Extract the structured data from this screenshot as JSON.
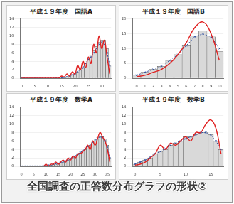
{
  "caption": "全国調査の正答数分布グラフの形状②",
  "chart_data": [
    {
      "type": "bar",
      "title": "平成１９年度　国語A",
      "categories": [
        "0",
        null,
        null,
        null,
        null,
        "5",
        null,
        null,
        null,
        null,
        "10",
        null,
        null,
        null,
        null,
        "15",
        null,
        null,
        null,
        null,
        "20",
        null,
        null,
        null,
        null,
        "25",
        null,
        null,
        null,
        null,
        "30",
        null,
        null,
        null
      ],
      "series": [
        {
          "type": "bar",
          "color": "#d9d9d9",
          "values": [
            0,
            0,
            0,
            0,
            0,
            0,
            0,
            0,
            0,
            0,
            0,
            0,
            0,
            0,
            0,
            0.1,
            0.2,
            0.3,
            0.5,
            0.7,
            1,
            1.5,
            2,
            2.5,
            3.5,
            4.5,
            5.5,
            6.5,
            7.5,
            8.5,
            9,
            9,
            7,
            3
          ]
        },
        {
          "type": "line",
          "color": "#e02020",
          "line_style": "solid",
          "values": [
            0,
            0,
            0,
            0,
            0,
            0,
            0,
            0,
            0,
            0,
            0,
            0,
            0,
            0,
            0,
            0.5,
            0.3,
            1,
            0.5,
            1.5,
            1,
            3,
            2,
            4,
            2.5,
            5,
            3.5,
            8,
            6,
            10,
            7,
            9,
            5,
            1
          ]
        },
        {
          "type": "line",
          "color": "#3050a0",
          "line_style": "dotted",
          "marker": "x",
          "values": [
            0,
            0,
            0,
            0,
            0,
            0,
            0,
            0,
            0,
            0,
            0,
            0,
            0,
            0,
            0,
            0.1,
            0.2,
            0.3,
            0.5,
            0.8,
            1,
            1.5,
            2,
            2.5,
            3.5,
            4.5,
            5,
            6,
            7,
            8,
            8.5,
            8,
            6,
            3
          ]
        }
      ],
      "ylim": [
        0,
        14
      ],
      "yticks": [
        0,
        2,
        4,
        6,
        8,
        10,
        12,
        14
      ],
      "grid": true
    },
    {
      "type": "bar",
      "title": "平成１９年度　国語B",
      "categories": [
        "0",
        "1",
        "2",
        "3",
        "4",
        "5",
        "6",
        "7",
        "8",
        "9",
        "10"
      ],
      "series": [
        {
          "type": "bar",
          "color": "#d9d9d9",
          "values": [
            1,
            2,
            3,
            4,
            6,
            8,
            11,
            14,
            16,
            14,
            9
          ]
        },
        {
          "type": "line",
          "color": "#e02020",
          "line_style": "solid",
          "values": [
            0.5,
            1,
            2,
            3,
            5,
            8,
            12,
            17,
            19,
            15,
            6
          ]
        },
        {
          "type": "line",
          "color": "#3050a0",
          "line_style": "dotted",
          "marker": "x",
          "values": [
            1,
            2,
            3,
            4,
            6,
            8,
            11,
            14,
            15,
            14,
            10
          ]
        }
      ],
      "ylim": [
        0,
        20
      ],
      "yticks": [
        0,
        5,
        10,
        15,
        20
      ],
      "grid": true
    },
    {
      "type": "bar",
      "title": "平成１９年度　数学A",
      "categories": [
        "0",
        null,
        null,
        null,
        null,
        "5",
        null,
        null,
        null,
        null,
        "10",
        null,
        null,
        null,
        null,
        "15",
        null,
        null,
        null,
        null,
        "20",
        null,
        null,
        null,
        null,
        "25",
        null,
        null,
        null,
        null,
        "30",
        null,
        null,
        null,
        null,
        "35",
        null
      ],
      "series": [
        {
          "type": "bar",
          "color": "#d9d9d9",
          "values": [
            0,
            0,
            0,
            0,
            0,
            0,
            0,
            0,
            0,
            0.1,
            0.1,
            0.2,
            0.3,
            0.4,
            0.5,
            0.6,
            0.8,
            1,
            1.2,
            1.5,
            1.8,
            2,
            2.4,
            2.8,
            3.2,
            3.6,
            4,
            4.6,
            5,
            5.6,
            6,
            6.5,
            7,
            7,
            6.5,
            5,
            2
          ]
        },
        {
          "type": "line",
          "color": "#e02020",
          "line_style": "solid",
          "values": [
            0,
            0,
            0,
            0,
            0,
            0,
            0,
            0,
            0,
            0,
            0.5,
            0,
            0.5,
            0.5,
            1,
            0.5,
            1,
            1.5,
            1,
            2,
            1.5,
            2.5,
            2,
            3,
            3,
            3.5,
            4,
            5,
            4,
            6,
            5,
            6.5,
            8,
            7,
            6,
            4,
            1
          ]
        },
        {
          "type": "line",
          "color": "#3050a0",
          "line_style": "dotted",
          "marker": "x",
          "values": [
            0,
            0,
            0,
            0,
            0,
            0,
            0,
            0,
            0,
            0.1,
            0.2,
            0.3,
            0.4,
            0.5,
            0.6,
            0.7,
            0.9,
            1.1,
            1.3,
            1.6,
            1.9,
            2.2,
            2.5,
            2.9,
            3.3,
            3.7,
            4.2,
            4.7,
            5.2,
            5.7,
            6.2,
            6.6,
            7,
            6.8,
            6,
            4.5,
            2
          ]
        }
      ],
      "ylim": [
        0,
        14
      ],
      "yticks": [
        0,
        2,
        4,
        6,
        8,
        10,
        12,
        14
      ],
      "grid": true
    },
    {
      "type": "bar",
      "title": "平成１９年度　数学B",
      "categories": [
        "0",
        null,
        null,
        null,
        null,
        "5",
        null,
        null,
        null,
        null,
        "10",
        null,
        null,
        null,
        null,
        "15",
        null,
        null
      ],
      "series": [
        {
          "type": "bar",
          "color": "#d9d9d9",
          "values": [
            0.5,
            1,
            1.5,
            2,
            3,
            3.5,
            4,
            5,
            5.5,
            6,
            7,
            7,
            7.5,
            8,
            8,
            7.5,
            6,
            4
          ]
        },
        {
          "type": "line",
          "color": "#e02020",
          "line_style": "solid",
          "values": [
            0.3,
            0.5,
            1,
            2,
            3,
            5,
            4,
            5.5,
            5,
            6,
            7,
            6,
            8,
            8,
            10,
            11,
            9,
            3
          ]
        },
        {
          "type": "line",
          "color": "#3050a0",
          "line_style": "dotted",
          "marker": "x",
          "values": [
            0.5,
            1,
            1.5,
            2.2,
            3,
            3.5,
            4.2,
            5,
            5.5,
            6,
            6.5,
            7,
            7.5,
            8,
            8,
            7.5,
            6,
            4
          ]
        }
      ],
      "ylim": [
        0,
        14
      ],
      "yticks": [
        0,
        2,
        4,
        6,
        8,
        10,
        12,
        14
      ],
      "grid": true
    }
  ]
}
